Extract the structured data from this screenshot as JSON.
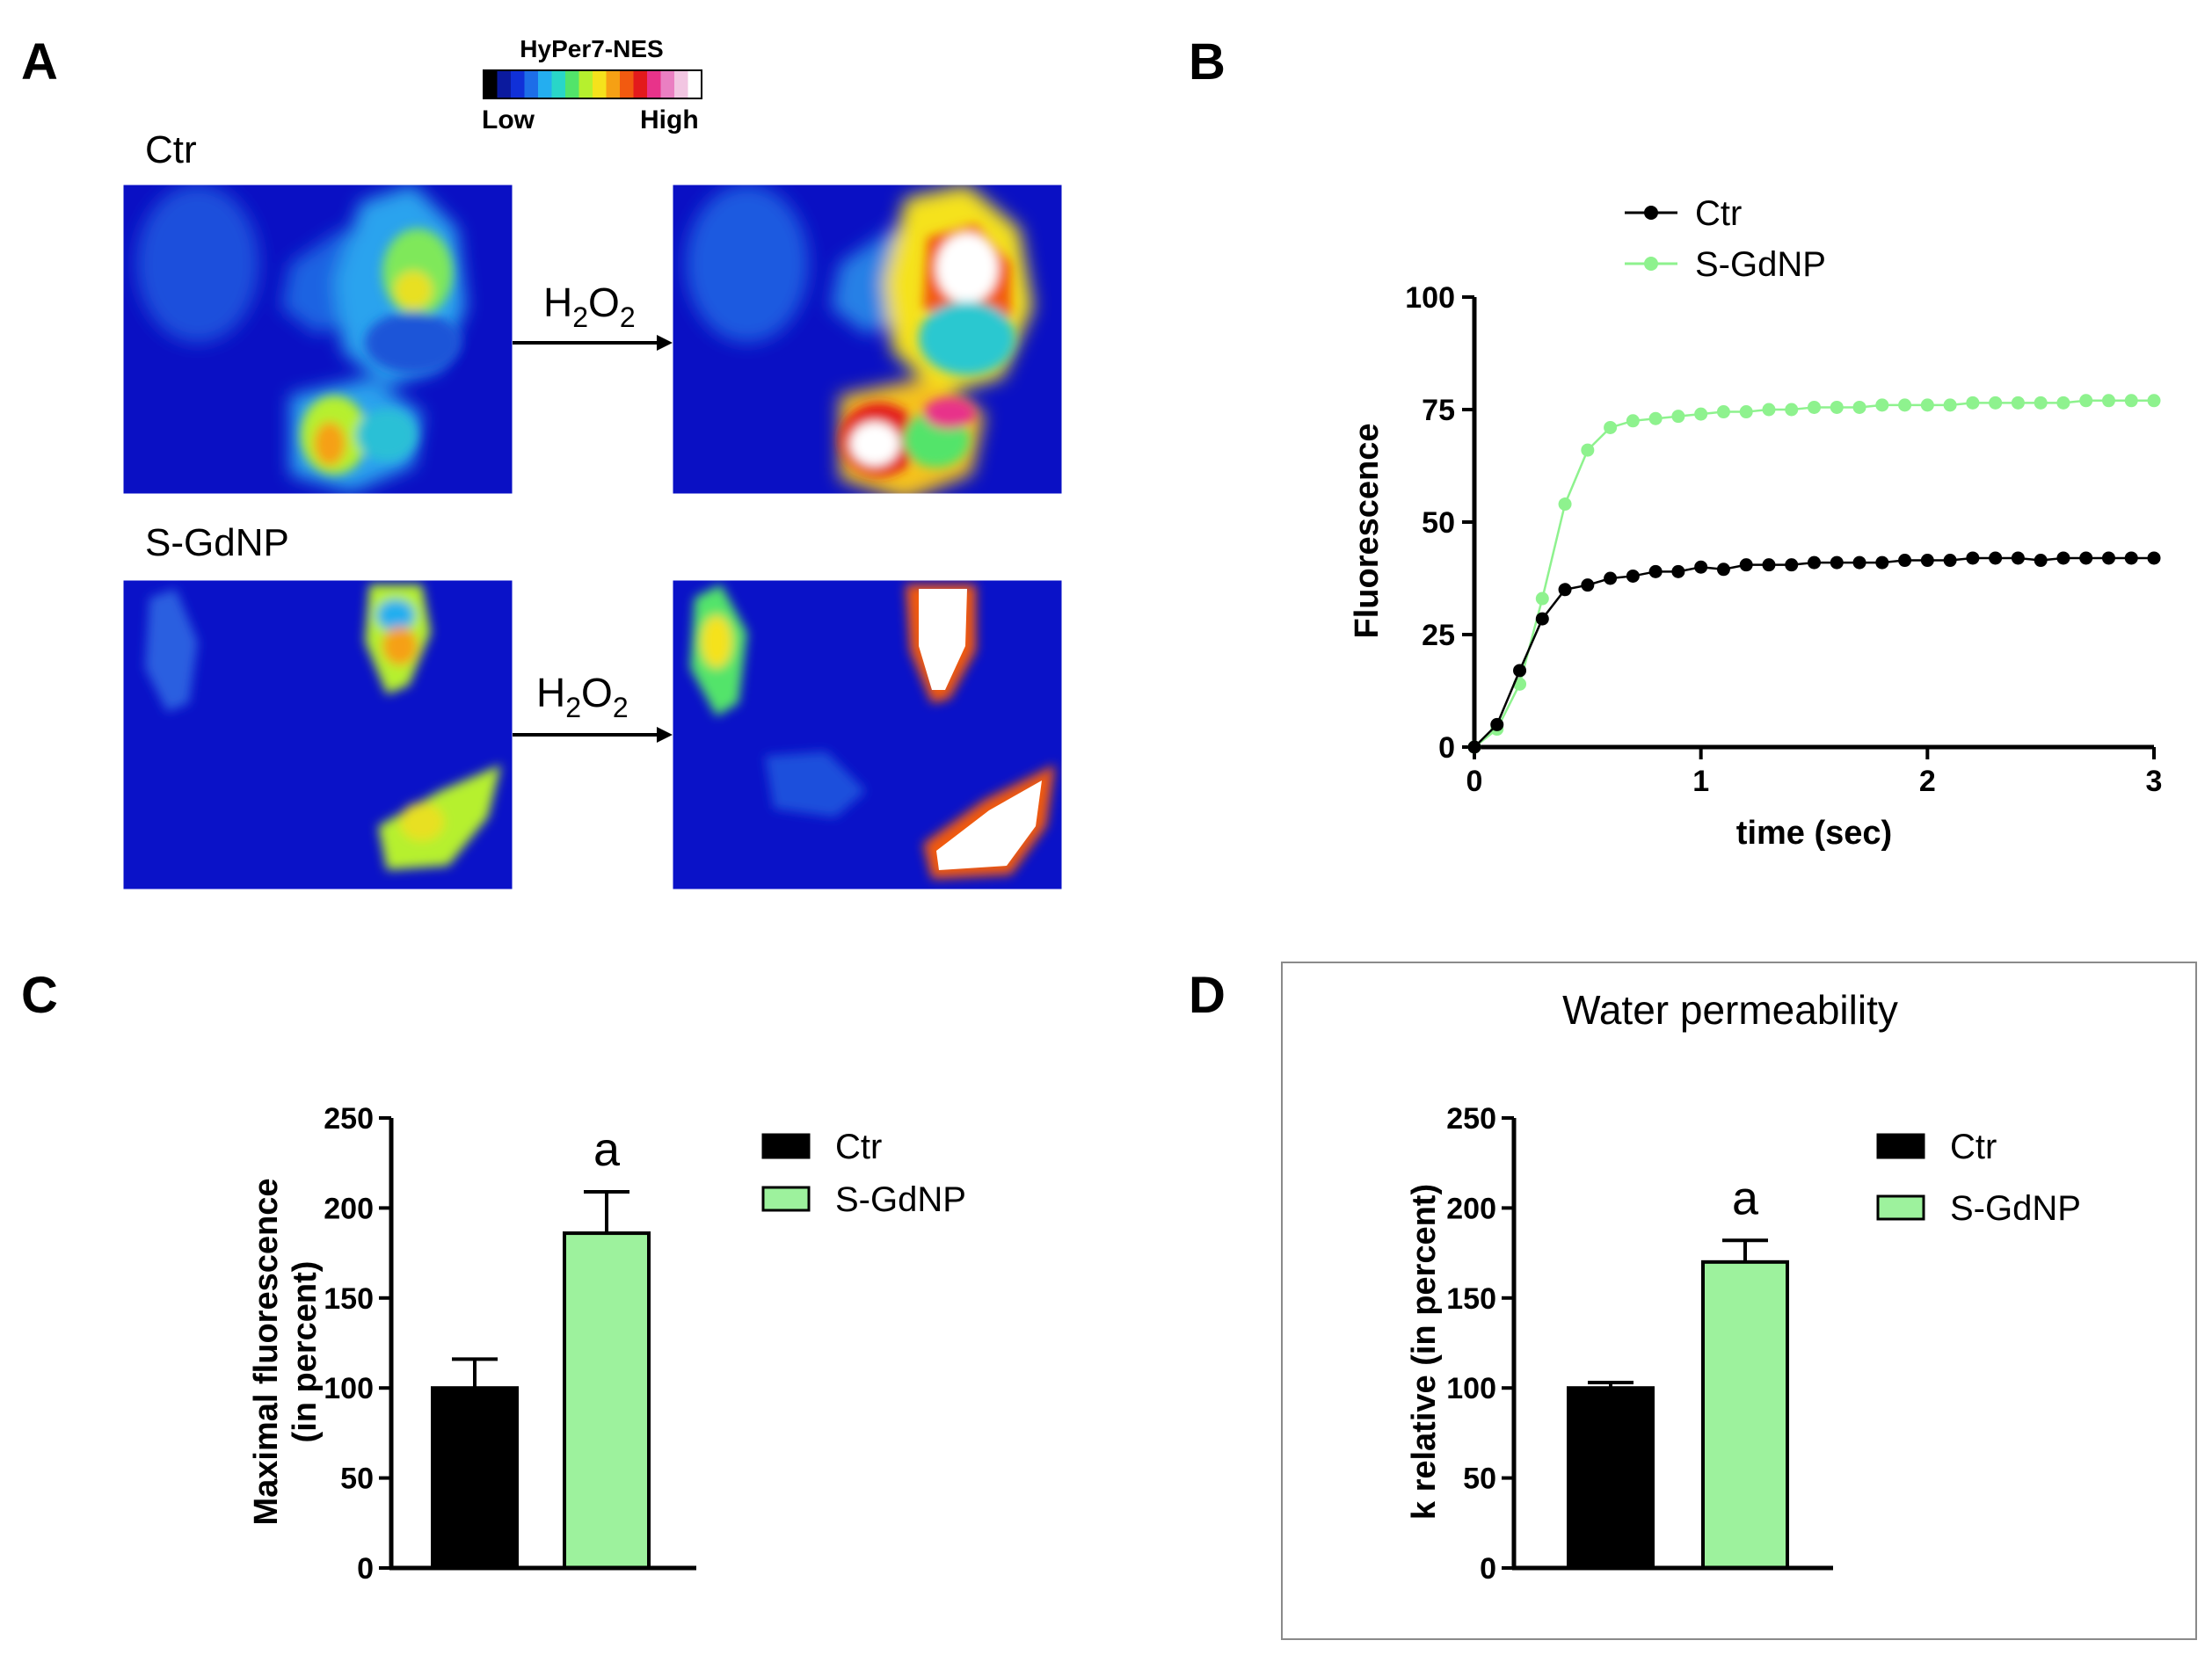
{
  "colors": {
    "ctr": "#000000",
    "sgdnp": "#9df29d",
    "sgdnp_line": "#8ef28e",
    "cell_bg": "#0a10c4",
    "axis": "#000000",
    "frame": "#8a8a8a"
  },
  "panel_a": {
    "label": "A",
    "colorbar": {
      "title": "HyPer7-NES",
      "low_label": "Low",
      "high_label": "High",
      "colors": [
        "#000000",
        "#0b1a9e",
        "#1030d8",
        "#1d6ee8",
        "#24aef0",
        "#29d6c8",
        "#52e46a",
        "#b6f02e",
        "#f5e21c",
        "#f6a014",
        "#f25a10",
        "#e31a1c",
        "#e8338a",
        "#ea7fc2",
        "#f2c6e2",
        "#ffffff"
      ]
    },
    "rows": [
      {
        "condition": "Ctr",
        "arrow_label_main": "H",
        "arrow_label_sub1": "2",
        "arrow_label_mid": "O",
        "arrow_label_sub2": "2"
      },
      {
        "condition": "S-GdNP",
        "arrow_label_main": "H",
        "arrow_label_sub1": "2",
        "arrow_label_mid": "O",
        "arrow_label_sub2": "2"
      }
    ]
  },
  "chart_data": [
    {
      "panel": "B",
      "type": "line",
      "title": "",
      "xlabel": "time (sec)",
      "ylabel": "Fluorescence",
      "xlim": [
        0,
        3
      ],
      "ylim": [
        0,
        100
      ],
      "xticks": [
        0,
        1,
        2,
        3
      ],
      "yticks": [
        0,
        25,
        50,
        75,
        100
      ],
      "grid": false,
      "legend": "top-center",
      "x": [
        0,
        0.1,
        0.2,
        0.3,
        0.4,
        0.5,
        0.6,
        0.7,
        0.8,
        0.9,
        1.0,
        1.1,
        1.2,
        1.3,
        1.4,
        1.5,
        1.6,
        1.7,
        1.8,
        1.9,
        2.0,
        2.1,
        2.2,
        2.3,
        2.4,
        2.5,
        2.6,
        2.7,
        2.8,
        2.9,
        3.0
      ],
      "series": [
        {
          "name": "Ctr",
          "color": "#000000",
          "values": [
            0,
            5,
            17,
            28.5,
            35,
            36,
            37.5,
            38,
            39,
            39,
            40,
            39.5,
            40.5,
            40.5,
            40.5,
            41,
            41,
            41,
            41,
            41.5,
            41.5,
            41.5,
            42,
            42,
            42,
            41.5,
            42,
            42,
            42,
            42,
            42
          ]
        },
        {
          "name": "S-GdNP",
          "color": "#8ef28e",
          "values": [
            0,
            4,
            14,
            33,
            54,
            66,
            71,
            72.5,
            73,
            73.5,
            74,
            74.5,
            74.5,
            75,
            75,
            75.5,
            75.5,
            75.5,
            76,
            76,
            76,
            76,
            76.5,
            76.5,
            76.5,
            76.5,
            76.5,
            77,
            77,
            77,
            77
          ]
        }
      ]
    },
    {
      "panel": "C",
      "type": "bar",
      "title": "",
      "xlabel": "",
      "ylabel_line1": "Maximal fluorescence",
      "ylabel_line2": "(in percent)",
      "ylim": [
        0,
        250
      ],
      "yticks": [
        0,
        50,
        100,
        150,
        200,
        250
      ],
      "legend": "right",
      "categories": [
        "Ctr",
        "S-GdNP"
      ],
      "values": [
        100,
        186
      ],
      "errors": [
        16,
        23
      ],
      "annotation": "a"
    },
    {
      "panel": "D",
      "type": "bar",
      "title": "Water permeability",
      "xlabel": "",
      "ylabel": "k relative (in percent)",
      "ylim": [
        0,
        250
      ],
      "yticks": [
        0,
        50,
        100,
        150,
        200,
        250
      ],
      "legend": "right",
      "categories": [
        "Ctr",
        "S-GdNP"
      ],
      "values": [
        100,
        170
      ],
      "errors": [
        3,
        12
      ],
      "annotation": "a"
    }
  ],
  "labels": {
    "b": "B",
    "c": "C",
    "d": "D"
  },
  "legend": {
    "ctr": "Ctr",
    "sgdnp": "S-GdNP"
  }
}
